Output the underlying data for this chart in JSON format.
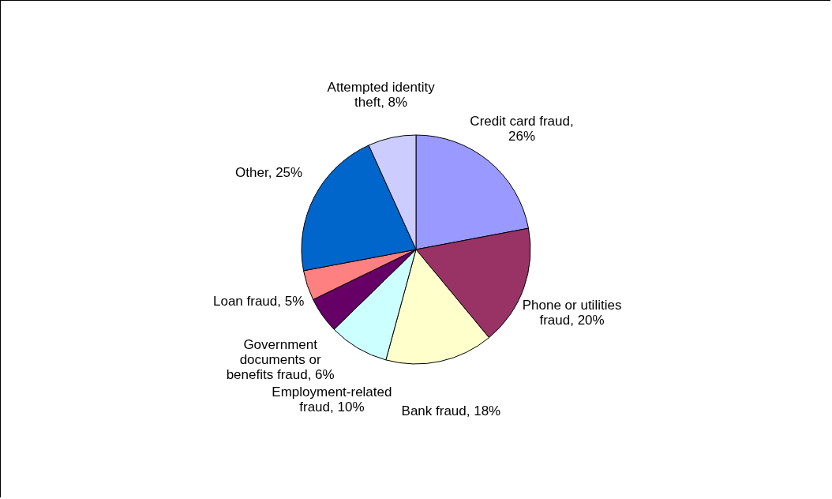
{
  "chart_data": {
    "type": "pie",
    "categories": [
      "Credit card fraud, 26%",
      "Phone or utilities fraud, 20%",
      "Bank fraud, 18%",
      "Employment-related fraud, 10%",
      "Government documents or benefits fraud, 6%",
      "Loan fraud, 5%",
      "Other, 25%",
      "Attempted identity theft, 8%"
    ],
    "values": [
      26,
      20,
      18,
      10,
      6,
      5,
      25,
      8
    ],
    "colors": [
      "#9999ff",
      "#993366",
      "#ffffcc",
      "#ccffff",
      "#660066",
      "#ff8080",
      "#0066cc",
      "#ccccff"
    ]
  }
}
